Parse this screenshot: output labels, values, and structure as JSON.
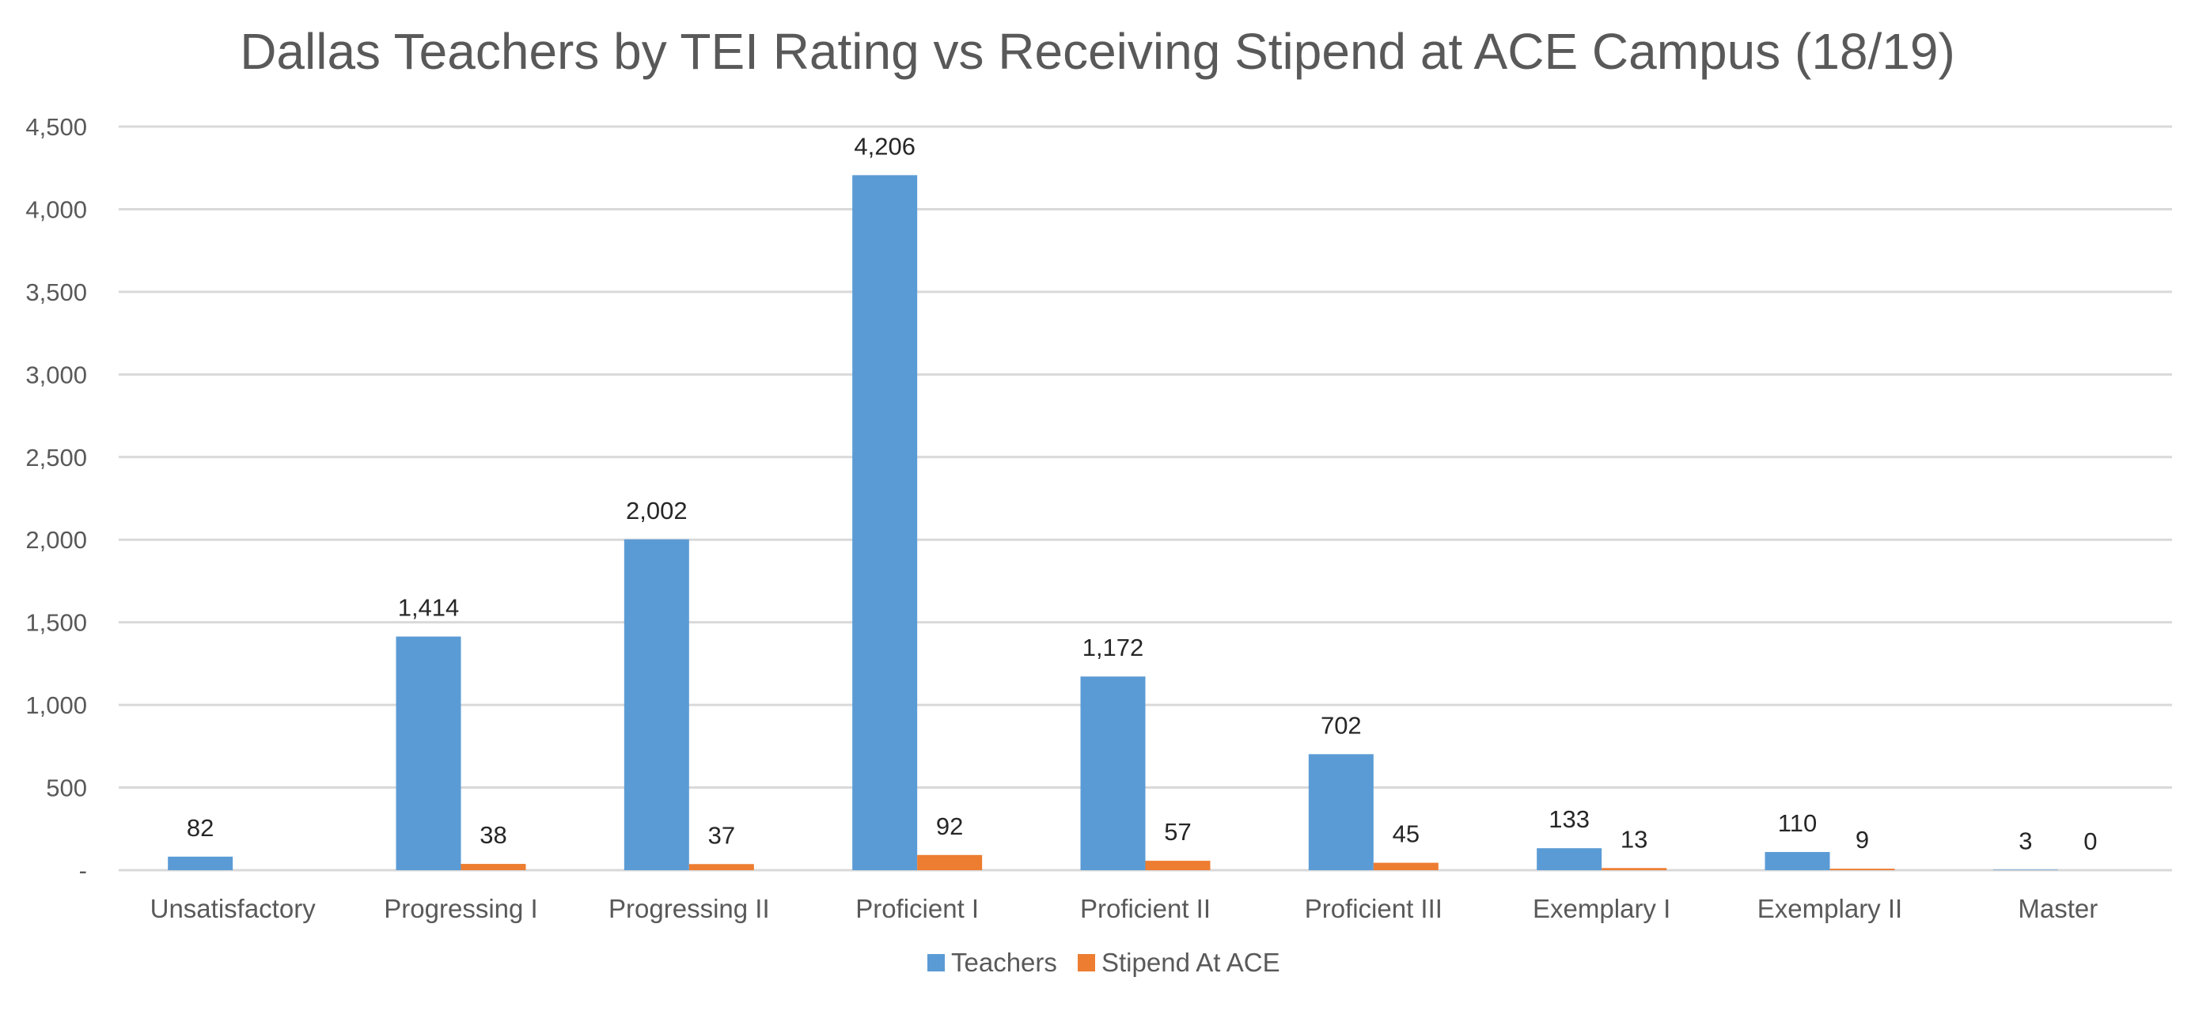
{
  "chart_data": {
    "type": "bar",
    "title": "Dallas Teachers by TEI Rating vs Receiving Stipend at ACE Campus (18/19)",
    "xlabel": "",
    "ylabel": "",
    "ylim": [
      0,
      4500
    ],
    "ytick_step": 500,
    "ytick_labels": [
      "-",
      "500",
      "1,000",
      "1,500",
      "2,000",
      "2,500",
      "3,000",
      "3,500",
      "4,000",
      "4,500"
    ],
    "grid": true,
    "legend_position": "bottom",
    "categories": [
      "Unsatisfactory",
      "Progressing I",
      "Progressing II",
      "Proficient I",
      "Proficient II",
      "Proficient III",
      "Exemplary I",
      "Exemplary II",
      "Master"
    ],
    "series": [
      {
        "name": "Teachers",
        "color": "#5b9bd5",
        "values": [
          82,
          1414,
          2002,
          4206,
          1172,
          702,
          133,
          110,
          3
        ],
        "labels": [
          "82",
          "1,414",
          "2,002",
          "4,206",
          "1,172",
          "702",
          "133",
          "110",
          "3"
        ]
      },
      {
        "name": "Stipend At ACE",
        "color": "#ed7d31",
        "values": [
          null,
          38,
          37,
          92,
          57,
          45,
          13,
          9,
          0
        ],
        "labels": [
          null,
          "38",
          "37",
          "92",
          "57",
          "45",
          "13",
          "9",
          "0"
        ]
      }
    ]
  }
}
